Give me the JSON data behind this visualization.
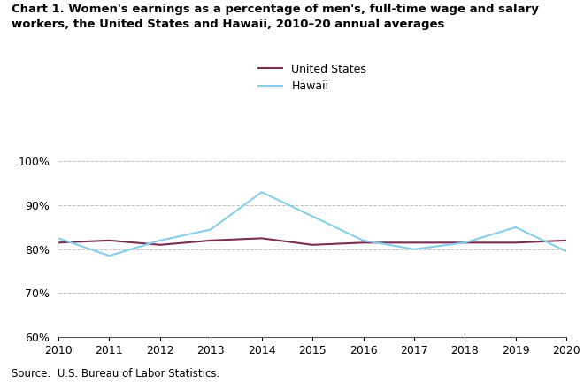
{
  "years": [
    2010,
    2011,
    2012,
    2013,
    2014,
    2015,
    2016,
    2017,
    2018,
    2019,
    2020
  ],
  "us_values": [
    81.5,
    82.0,
    81.0,
    82.0,
    82.5,
    81.0,
    81.5,
    81.5,
    81.5,
    81.5,
    82.0
  ],
  "hawaii_values": [
    82.5,
    78.5,
    82.0,
    84.5,
    93.0,
    87.5,
    82.0,
    80.0,
    81.5,
    85.0,
    79.5
  ],
  "us_color": "#7B2D52",
  "hawaii_color": "#87CEEB",
  "title": "Chart 1. Women's earnings as a percentage of men's, full-time wage and salary\nworkers, the United States and Hawaii, 2010–20 annual averages",
  "legend_labels": [
    "United States",
    "Hawaii"
  ],
  "ylim": [
    60,
    101
  ],
  "yticks": [
    60,
    70,
    80,
    90,
    100
  ],
  "ytick_labels": [
    "60%",
    "70%",
    "80%",
    "90%",
    "100%"
  ],
  "source_text": "Source:  U.S. Bureau of Labor Statistics.",
  "line_width": 1.5
}
